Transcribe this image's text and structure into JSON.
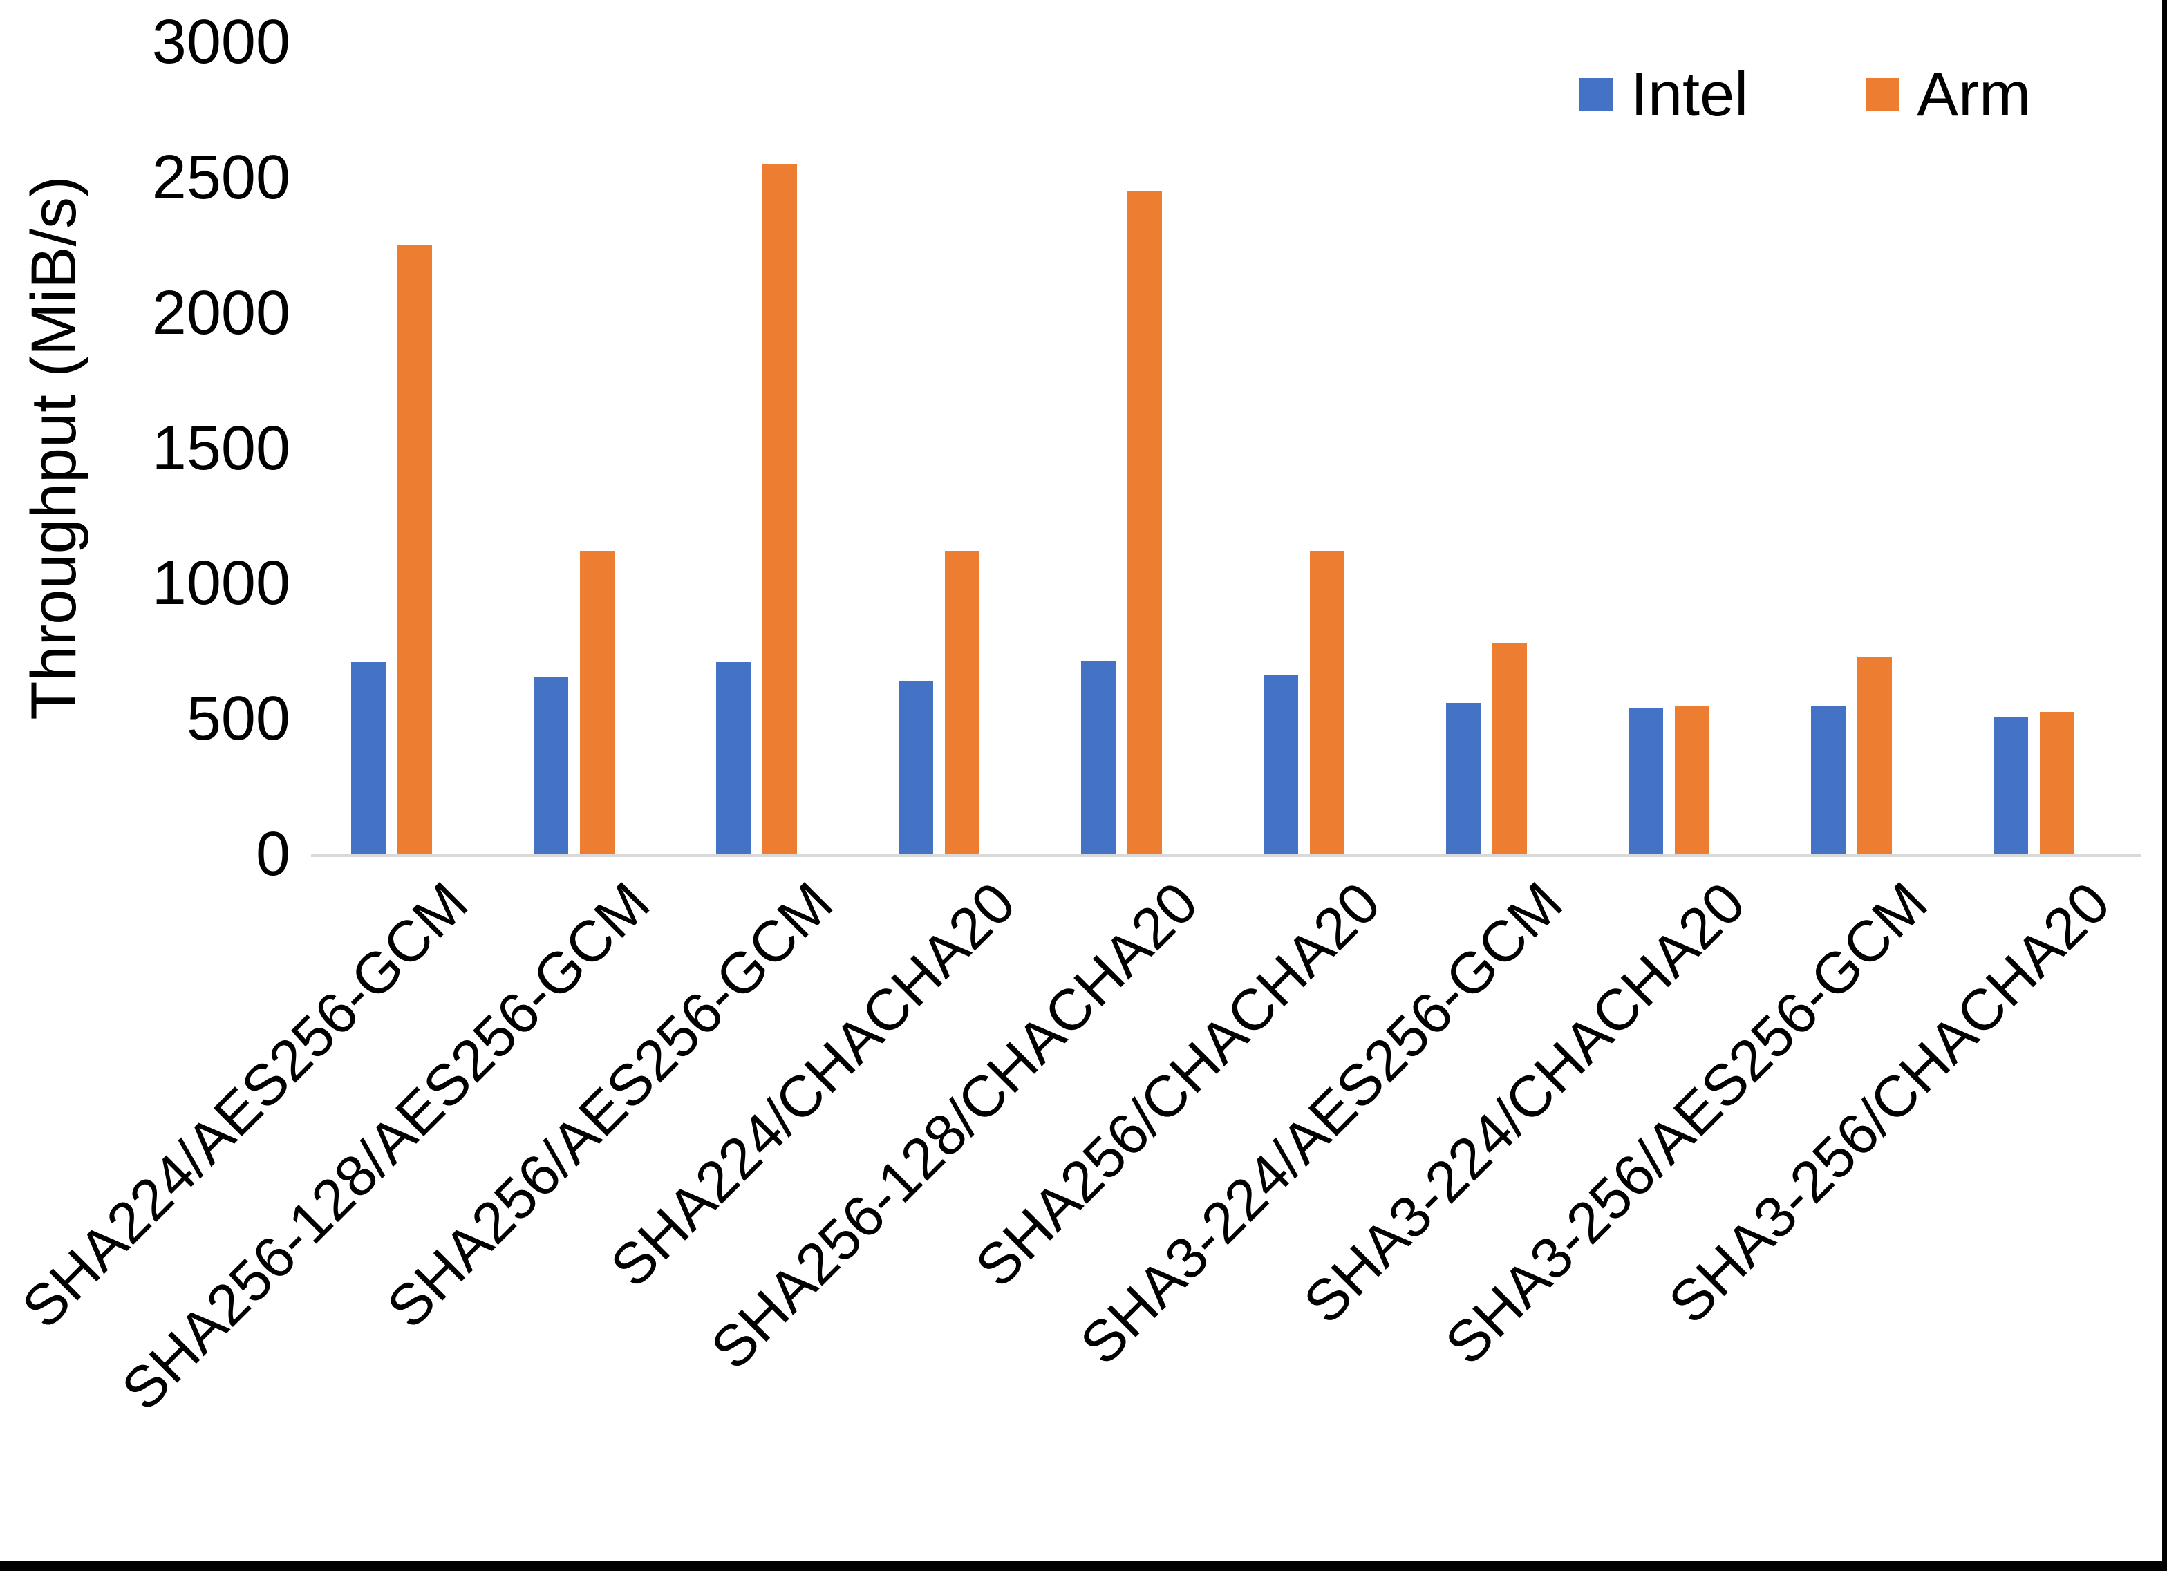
{
  "chart_data": {
    "type": "bar",
    "title": "",
    "xlabel": "",
    "ylabel": "Throughput (MiB/s)",
    "ylim": [
      0,
      3000
    ],
    "yticks": [
      0,
      500,
      1000,
      1500,
      2000,
      2500,
      3000
    ],
    "grid": false,
    "legend_position": "top-right",
    "axis_line_color": "#D9D9D9",
    "text_color": "#000000",
    "categories": [
      "SHA224/AES256-GCM",
      "SHA256-128/AES256-GCM",
      "SHA256/AES256-GCM",
      "SHA224/CHACHA20",
      "SHA256-128/CHACHA20",
      "SHA256/CHACHA20",
      "SHA3-224/AES256-GCM",
      "SHA3-224/CHACHA20",
      "SHA3-256/AES256-GCM",
      "SHA3-256/CHACHA20"
    ],
    "series": [
      {
        "name": "Intel",
        "color": "#4472C4",
        "values": [
          710,
          655,
          710,
          640,
          715,
          660,
          560,
          540,
          550,
          505
        ]
      },
      {
        "name": "Arm",
        "color": "#ED7D31",
        "values": [
          2250,
          1120,
          2550,
          1120,
          2450,
          1120,
          780,
          550,
          730,
          525
        ]
      }
    ]
  }
}
